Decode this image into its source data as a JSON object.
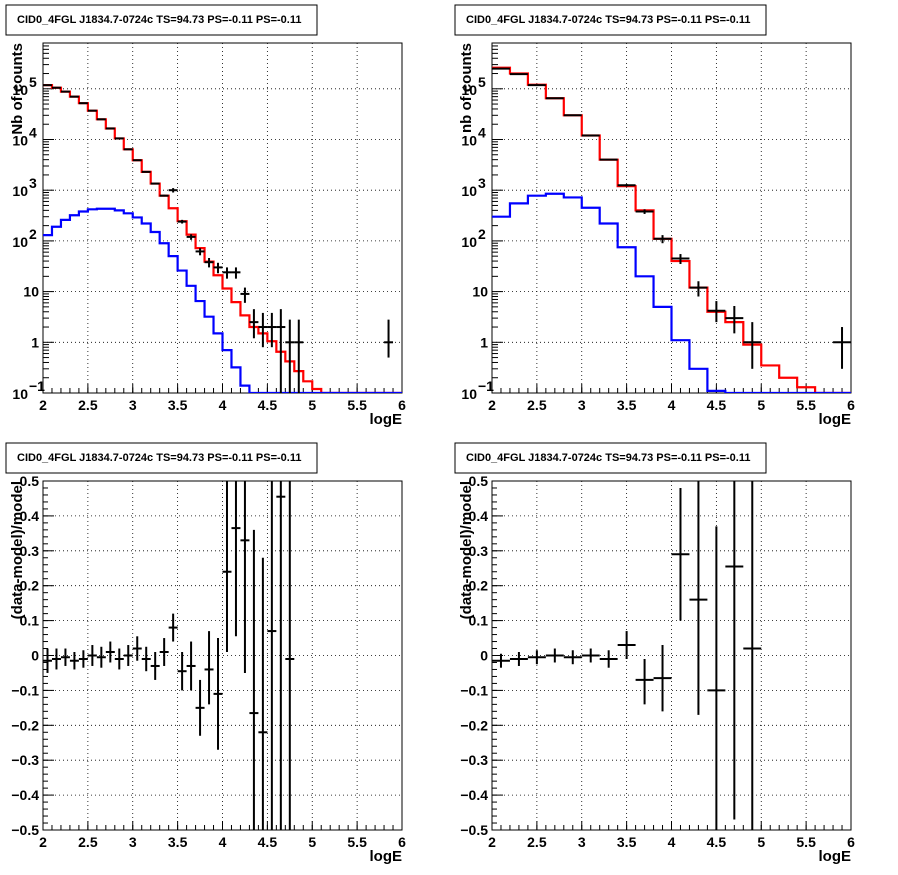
{
  "colors": {
    "model": "#ff0000",
    "source": "#0000ff",
    "data": "#000000",
    "grid": "#000000"
  },
  "chart_data": [
    {
      "type": "line",
      "title": "CID0_4FGL J1834.7-0724c TS=94.73 PS=-0.11 PS=-0.11",
      "xlabel": "logE",
      "ylabel": "Nb of counts",
      "xlim": [
        2,
        6
      ],
      "ylim": [
        0.1,
        800000
      ],
      "log_y": true,
      "grid": true,
      "x_ticks": [
        "2",
        "2.5",
        "3",
        "3.5",
        "4",
        "4.5",
        "5",
        "5.5",
        "6"
      ],
      "y_ticks": [
        {
          "v": 0.1,
          "base": "10",
          "exp": "−1"
        },
        {
          "v": 1,
          "label": "1"
        },
        {
          "v": 10,
          "label": "10"
        },
        {
          "v": 100,
          "base": "10",
          "exp": "2"
        },
        {
          "v": 1000,
          "base": "10",
          "exp": "3"
        },
        {
          "v": 10000,
          "base": "10",
          "exp": "4"
        },
        {
          "v": 100000,
          "base": "10",
          "exp": "5"
        }
      ],
      "x_edges": [
        2,
        2.1,
        2.2,
        2.3,
        2.4,
        2.5,
        2.6,
        2.7,
        2.8,
        2.9,
        3,
        3.1,
        3.2,
        3.3,
        3.4,
        3.5,
        3.6,
        3.7,
        3.8,
        3.9,
        4,
        4.1,
        4.2,
        4.3,
        4.4,
        4.5,
        4.6,
        4.7,
        4.8,
        4.9,
        5,
        5.1,
        5.2,
        5.3,
        5.4,
        5.5,
        5.6,
        5.7,
        5.8,
        5.9,
        6
      ],
      "series": [
        {
          "role": "model",
          "values": [
            118000,
            105000,
            88000,
            70000,
            52000,
            37000,
            25000,
            16500,
            10500,
            6400,
            3900,
            2300,
            1350,
            780,
            440,
            245,
            133,
            72,
            39,
            21,
            11.5,
            6.2,
            3.4,
            2.0,
            1.5,
            1.05,
            0.65,
            0.42,
            0.27,
            0.17,
            0.12,
            0.1,
            0.1,
            0.1,
            0.1,
            0.1,
            0.1,
            0.1,
            0.1,
            0.1
          ]
        },
        {
          "role": "source",
          "values": [
            130,
            190,
            260,
            320,
            380,
            420,
            430,
            430,
            400,
            350,
            290,
            220,
            150,
            90,
            50,
            26,
            13,
            6.5,
            3.2,
            1.5,
            0.7,
            0.32,
            0.14,
            0.1,
            0.1,
            0.1,
            0.1,
            0.1,
            0.1,
            0.1,
            0.1,
            0.1,
            0.1,
            0.1,
            0.1,
            0.1,
            0.1,
            0.1,
            0.1,
            0.1
          ]
        }
      ],
      "points": [
        {
          "x": 2.05,
          "y": 118000,
          "lo": 117000,
          "hi": 119000
        },
        {
          "x": 2.15,
          "y": 105000,
          "lo": 104000,
          "hi": 106000
        },
        {
          "x": 2.25,
          "y": 88000,
          "lo": 87000,
          "hi": 89000
        },
        {
          "x": 2.35,
          "y": 70000,
          "lo": 69000,
          "hi": 71000
        },
        {
          "x": 2.45,
          "y": 52000,
          "lo": 51000,
          "hi": 53000
        },
        {
          "x": 2.55,
          "y": 37000,
          "lo": 36500,
          "hi": 37500
        },
        {
          "x": 2.65,
          "y": 25000,
          "lo": 24500,
          "hi": 25500
        },
        {
          "x": 2.75,
          "y": 16500,
          "lo": 16200,
          "hi": 16800
        },
        {
          "x": 2.85,
          "y": 10500,
          "lo": 10300,
          "hi": 10700
        },
        {
          "x": 2.95,
          "y": 6400,
          "lo": 6250,
          "hi": 6550
        },
        {
          "x": 3.05,
          "y": 3900,
          "lo": 3800,
          "hi": 4000
        },
        {
          "x": 3.15,
          "y": 2300,
          "lo": 2250,
          "hi": 2350
        },
        {
          "x": 3.25,
          "y": 1350,
          "lo": 1310,
          "hi": 1390
        },
        {
          "x": 3.35,
          "y": 780,
          "lo": 750,
          "hi": 810
        },
        {
          "x": 3.45,
          "y": 1000,
          "lo": 900,
          "hi": 1100
        },
        {
          "x": 3.55,
          "y": 240,
          "lo": 220,
          "hi": 260
        },
        {
          "x": 3.65,
          "y": 120,
          "lo": 105,
          "hi": 135
        },
        {
          "x": 3.75,
          "y": 62,
          "lo": 52,
          "hi": 72
        },
        {
          "x": 3.85,
          "y": 38,
          "lo": 30,
          "hi": 46
        },
        {
          "x": 3.95,
          "y": 30,
          "lo": 23,
          "hi": 37
        },
        {
          "x": 4.05,
          "y": 24,
          "lo": 18,
          "hi": 30
        },
        {
          "x": 4.15,
          "y": 24,
          "lo": 18,
          "hi": 30
        },
        {
          "x": 4.25,
          "y": 9,
          "lo": 6,
          "hi": 12
        },
        {
          "x": 4.35,
          "y": 2.5,
          "lo": 1.2,
          "hi": 4.5
        },
        {
          "x": 4.45,
          "y": 2.0,
          "lo": 0.8,
          "hi": 3.8
        },
        {
          "x": 4.55,
          "y": 2.0,
          "lo": 0.8,
          "hi": 3.8
        },
        {
          "x": 4.65,
          "y": 2.0,
          "lo": 0.1,
          "hi": 4.5
        },
        {
          "x": 4.75,
          "y": 1.0,
          "lo": 0.1,
          "hi": 2.8
        },
        {
          "x": 4.85,
          "y": 1.0,
          "lo": 0.1,
          "hi": 2.8
        },
        {
          "x": 5.85,
          "y": 1.0,
          "lo": 0.5,
          "hi": 2.8
        }
      ]
    },
    {
      "type": "line",
      "title": "CID0_4FGL J1834.7-0724c TS=94.73 PS=-0.11 PS=-0.11",
      "xlabel": "logE",
      "ylabel": "nb of counts",
      "xlim": [
        2,
        6
      ],
      "ylim": [
        0.1,
        800000
      ],
      "log_y": true,
      "grid": true,
      "x_ticks": [
        "2",
        "2.5",
        "3",
        "3.5",
        "4",
        "4.5",
        "5",
        "5.5",
        "6"
      ],
      "y_ticks": [
        {
          "v": 0.1,
          "base": "10",
          "exp": "−1"
        },
        {
          "v": 1,
          "label": "1"
        },
        {
          "v": 10,
          "label": "10"
        },
        {
          "v": 100,
          "base": "10",
          "exp": "2"
        },
        {
          "v": 1000,
          "base": "10",
          "exp": "3"
        },
        {
          "v": 10000,
          "base": "10",
          "exp": "4"
        },
        {
          "v": 100000,
          "base": "10",
          "exp": "5"
        }
      ],
      "x_edges": [
        2,
        2.2,
        2.4,
        2.6,
        2.8,
        3,
        3.2,
        3.4,
        3.6,
        3.8,
        4,
        4.2,
        4.4,
        4.6,
        4.8,
        5,
        5.2,
        5.4,
        5.6,
        5.8,
        6
      ],
      "series": [
        {
          "role": "model",
          "values": [
            260000,
            200000,
            120000,
            65000,
            30000,
            12000,
            4000,
            1200,
            400,
            110,
            40,
            12,
            4,
            2.5,
            0.9,
            0.35,
            0.2,
            0.13,
            0.1,
            0.1
          ]
        },
        {
          "role": "source",
          "values": [
            300,
            550,
            780,
            850,
            720,
            450,
            220,
            75,
            20,
            5,
            1.1,
            0.3,
            0.11,
            0.1,
            0.1,
            0.1,
            0.1,
            0.1,
            0.1,
            0.1
          ]
        }
      ],
      "points": [
        {
          "x": 2.1,
          "y": 250000,
          "lo": 248000,
          "hi": 252000
        },
        {
          "x": 2.3,
          "y": 195000,
          "lo": 193000,
          "hi": 197000
        },
        {
          "x": 2.5,
          "y": 118000,
          "lo": 117000,
          "hi": 119000
        },
        {
          "x": 2.7,
          "y": 65000,
          "lo": 64500,
          "hi": 65500
        },
        {
          "x": 2.9,
          "y": 30000,
          "lo": 29700,
          "hi": 30300
        },
        {
          "x": 3.1,
          "y": 12000,
          "lo": 11800,
          "hi": 12200
        },
        {
          "x": 3.3,
          "y": 4000,
          "lo": 3900,
          "hi": 4100
        },
        {
          "x": 3.5,
          "y": 1250,
          "lo": 1180,
          "hi": 1320
        },
        {
          "x": 3.7,
          "y": 380,
          "lo": 340,
          "hi": 420
        },
        {
          "x": 3.9,
          "y": 110,
          "lo": 90,
          "hi": 130
        },
        {
          "x": 4.1,
          "y": 45,
          "lo": 35,
          "hi": 55
        },
        {
          "x": 4.3,
          "y": 12,
          "lo": 8,
          "hi": 16
        },
        {
          "x": 4.5,
          "y": 4.2,
          "lo": 2.5,
          "hi": 6.5
        },
        {
          "x": 4.7,
          "y": 3.0,
          "lo": 1.5,
          "hi": 5.2
        },
        {
          "x": 4.9,
          "y": 1.0,
          "lo": 0.3,
          "hi": 2.5
        },
        {
          "x": 5.9,
          "y": 1.0,
          "lo": 0.3,
          "hi": 2.0
        }
      ]
    },
    {
      "type": "scatter",
      "title": "CID0_4FGL J1834.7-0724c TS=94.73 PS=-0.11 PS=-0.11",
      "xlabel": "logE",
      "ylabel": "(data-model)/model",
      "xlim": [
        2,
        6
      ],
      "ylim": [
        -0.5,
        0.5
      ],
      "grid": true,
      "x_ticks": [
        "2",
        "2.5",
        "3",
        "3.5",
        "4",
        "4.5",
        "5",
        "5.5",
        "6"
      ],
      "y_ticks": [
        "−0.5",
        "−0.4",
        "−0.3",
        "−0.2",
        "−0.1",
        "0",
        "0.1",
        "0.2",
        "0.3",
        "0.4",
        "0.5"
      ],
      "points": [
        {
          "x": 2.05,
          "y": -0.015,
          "dx": 0.05,
          "lo": -0.05,
          "hi": 0.02
        },
        {
          "x": 2.15,
          "y": -0.01,
          "dx": 0.05,
          "lo": -0.04,
          "hi": 0.02
        },
        {
          "x": 2.25,
          "y": -0.005,
          "dx": 0.05,
          "lo": -0.03,
          "hi": 0.02
        },
        {
          "x": 2.35,
          "y": -0.015,
          "dx": 0.05,
          "lo": -0.04,
          "hi": 0.01
        },
        {
          "x": 2.45,
          "y": -0.01,
          "dx": 0.05,
          "lo": -0.035,
          "hi": 0.015
        },
        {
          "x": 2.55,
          "y": 0.0,
          "dx": 0.05,
          "lo": -0.03,
          "hi": 0.03
        },
        {
          "x": 2.65,
          "y": -0.005,
          "dx": 0.05,
          "lo": -0.035,
          "hi": 0.025
        },
        {
          "x": 2.75,
          "y": 0.01,
          "dx": 0.05,
          "lo": -0.02,
          "hi": 0.04
        },
        {
          "x": 2.85,
          "y": -0.01,
          "dx": 0.05,
          "lo": -0.04,
          "hi": 0.02
        },
        {
          "x": 2.95,
          "y": 0.0,
          "dx": 0.05,
          "lo": -0.03,
          "hi": 0.03
        },
        {
          "x": 3.05,
          "y": 0.02,
          "dx": 0.05,
          "lo": -0.015,
          "hi": 0.055
        },
        {
          "x": 3.15,
          "y": -0.01,
          "dx": 0.05,
          "lo": -0.045,
          "hi": 0.025
        },
        {
          "x": 3.25,
          "y": -0.03,
          "dx": 0.05,
          "lo": -0.07,
          "hi": 0.01
        },
        {
          "x": 3.35,
          "y": 0.01,
          "dx": 0.05,
          "lo": -0.03,
          "hi": 0.05
        },
        {
          "x": 3.45,
          "y": 0.08,
          "dx": 0.05,
          "lo": 0.04,
          "hi": 0.12
        },
        {
          "x": 3.55,
          "y": -0.045,
          "dx": 0.05,
          "lo": -0.1,
          "hi": 0.01
        },
        {
          "x": 3.65,
          "y": -0.03,
          "dx": 0.05,
          "lo": -0.1,
          "hi": 0.04
        },
        {
          "x": 3.75,
          "y": -0.15,
          "dx": 0.05,
          "lo": -0.23,
          "hi": -0.07
        },
        {
          "x": 3.85,
          "y": -0.04,
          "dx": 0.05,
          "lo": -0.14,
          "hi": 0.07
        },
        {
          "x": 3.95,
          "y": -0.11,
          "dx": 0.05,
          "lo": -0.27,
          "hi": 0.05
        },
        {
          "x": 4.05,
          "y": 0.24,
          "dx": 0.05,
          "lo": 0.01,
          "hi": 0.5
        },
        {
          "x": 4.15,
          "y": 0.365,
          "dx": 0.05,
          "lo": 0.055,
          "hi": 0.5
        },
        {
          "x": 4.25,
          "y": 0.33,
          "dx": 0.05,
          "lo": -0.05,
          "hi": 0.5
        },
        {
          "x": 4.35,
          "y": -0.165,
          "dx": 0.05,
          "lo": -0.5,
          "hi": 0.36
        },
        {
          "x": 4.45,
          "y": -0.22,
          "dx": 0.05,
          "lo": -0.5,
          "hi": 0.28
        },
        {
          "x": 4.55,
          "y": 0.07,
          "dx": 0.05,
          "lo": -0.5,
          "hi": 0.5
        },
        {
          "x": 4.65,
          "y": 0.455,
          "dx": 0.05,
          "lo": -0.5,
          "hi": 0.5
        },
        {
          "x": 4.75,
          "y": -0.01,
          "dx": 0.05,
          "lo": -0.5,
          "hi": 0.5
        }
      ]
    },
    {
      "type": "scatter",
      "title": "CID0_4FGL J1834.7-0724c TS=94.73 PS=-0.11 PS=-0.11",
      "xlabel": "logE",
      "ylabel": "(data-model)/model",
      "xlim": [
        2,
        6
      ],
      "ylim": [
        -0.5,
        0.5
      ],
      "grid": true,
      "x_ticks": [
        "2",
        "2.5",
        "3",
        "3.5",
        "4",
        "4.5",
        "5",
        "5.5",
        "6"
      ],
      "y_ticks": [
        "−0.5",
        "−0.4",
        "−0.3",
        "−0.2",
        "−0.1",
        "0",
        "0.1",
        "0.2",
        "0.3",
        "0.4",
        "0.5"
      ],
      "points": [
        {
          "x": 2.1,
          "y": -0.015,
          "dx": 0.1,
          "lo": -0.035,
          "hi": 0.005
        },
        {
          "x": 2.3,
          "y": -0.01,
          "dx": 0.1,
          "lo": -0.03,
          "hi": 0.01
        },
        {
          "x": 2.5,
          "y": -0.005,
          "dx": 0.1,
          "lo": -0.025,
          "hi": 0.015
        },
        {
          "x": 2.7,
          "y": 0.0,
          "dx": 0.1,
          "lo": -0.02,
          "hi": 0.02
        },
        {
          "x": 2.9,
          "y": -0.005,
          "dx": 0.1,
          "lo": -0.025,
          "hi": 0.015
        },
        {
          "x": 3.1,
          "y": 0.0,
          "dx": 0.1,
          "lo": -0.02,
          "hi": 0.02
        },
        {
          "x": 3.3,
          "y": -0.01,
          "dx": 0.1,
          "lo": -0.035,
          "hi": 0.015
        },
        {
          "x": 3.5,
          "y": 0.03,
          "dx": 0.1,
          "lo": -0.01,
          "hi": 0.07
        },
        {
          "x": 3.7,
          "y": -0.07,
          "dx": 0.1,
          "lo": -0.14,
          "hi": -0.01
        },
        {
          "x": 3.9,
          "y": -0.065,
          "dx": 0.1,
          "lo": -0.16,
          "hi": 0.03
        },
        {
          "x": 4.1,
          "y": 0.29,
          "dx": 0.1,
          "lo": 0.1,
          "hi": 0.48
        },
        {
          "x": 4.3,
          "y": 0.16,
          "dx": 0.1,
          "lo": -0.17,
          "hi": 0.5
        },
        {
          "x": 4.5,
          "y": -0.1,
          "dx": 0.1,
          "lo": -0.5,
          "hi": 0.37
        },
        {
          "x": 4.7,
          "y": 0.255,
          "dx": 0.1,
          "lo": -0.47,
          "hi": 0.5
        },
        {
          "x": 4.9,
          "y": 0.02,
          "dx": 0.1,
          "lo": -0.5,
          "hi": 0.5
        }
      ]
    }
  ]
}
